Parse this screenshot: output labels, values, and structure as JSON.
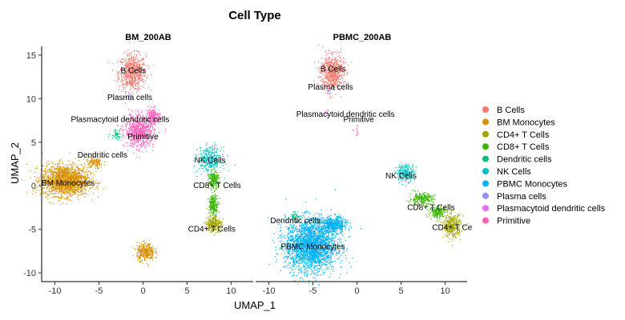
{
  "chart_data": {
    "type": "scatter",
    "title": "Cell Type",
    "xlabel": "UMAP_1",
    "ylabel": "UMAP_2",
    "xlim": [
      -11.5,
      12.5
    ],
    "ylim": [
      -11,
      16
    ],
    "xticks": [
      -10,
      -5,
      0,
      5,
      10
    ],
    "yticks": [
      -10,
      -5,
      0,
      5,
      10,
      15
    ],
    "grid": false,
    "legend_position": "right",
    "categories": [
      {
        "name": "B Cells",
        "color": "#F8766D"
      },
      {
        "name": "BM Monocytes",
        "color": "#D89000"
      },
      {
        "name": "CD4+ T Cells",
        "color": "#A3A500"
      },
      {
        "name": "CD8+ T Cells",
        "color": "#39B600"
      },
      {
        "name": "Dendritic cells",
        "color": "#00BF7D"
      },
      {
        "name": "NK Cells",
        "color": "#00BFC4"
      },
      {
        "name": "PBMC Monocytes",
        "color": "#00B0F6"
      },
      {
        "name": "Plasma cells",
        "color": "#9590FF"
      },
      {
        "name": "Plasmacytoid dendritic cells",
        "color": "#E76BF3"
      },
      {
        "name": "Primitive",
        "color": "#FF62BC"
      }
    ],
    "panels": [
      {
        "name": "BM_200AB",
        "clusters": [
          {
            "category": 0,
            "cx": -1.2,
            "cy": 13.0,
            "rx": 1.4,
            "ry": 1.9,
            "n": 700
          },
          {
            "category": 1,
            "cx": -8.8,
            "cy": 0.6,
            "rx": 2.4,
            "ry": 1.6,
            "n": 1800
          },
          {
            "category": 1,
            "cx": 0.3,
            "cy": -7.6,
            "rx": 0.9,
            "ry": 0.9,
            "n": 350
          },
          {
            "category": 1,
            "cx": -5.5,
            "cy": 2.6,
            "rx": 0.9,
            "ry": 0.6,
            "n": 120
          },
          {
            "category": 4,
            "cx": -3.0,
            "cy": 6.0,
            "rx": 0.6,
            "ry": 0.6,
            "n": 45
          },
          {
            "category": 5,
            "cx": 7.6,
            "cy": 3.0,
            "rx": 1.2,
            "ry": 1.3,
            "n": 350
          },
          {
            "category": 3,
            "cx": 8.0,
            "cy": 0.6,
            "rx": 0.5,
            "ry": 0.9,
            "n": 220
          },
          {
            "category": 3,
            "cx": 8.0,
            "cy": -2.2,
            "rx": 0.5,
            "ry": 1.0,
            "n": 220
          },
          {
            "category": 2,
            "cx": 8.0,
            "cy": -4.4,
            "rx": 0.8,
            "ry": 0.8,
            "n": 300
          },
          {
            "category": 7,
            "cx": -1.7,
            "cy": 10.2,
            "rx": 0.35,
            "ry": 0.35,
            "n": 15
          },
          {
            "category": 8,
            "cx": -1.4,
            "cy": 8.0,
            "rx": 0.3,
            "ry": 0.3,
            "n": 15
          },
          {
            "category": 9,
            "cx": -0.4,
            "cy": 6.2,
            "rx": 1.5,
            "ry": 1.6,
            "n": 800
          },
          {
            "category": 9,
            "cx": 1.2,
            "cy": 8.0,
            "rx": 0.7,
            "ry": 0.8,
            "n": 200
          }
        ],
        "labels": [
          {
            "text": "B Cells",
            "x": -1.1,
            "y": 13.2
          },
          {
            "text": "Plasma cells",
            "x": -1.5,
            "y": 10.1
          },
          {
            "text": "Plasmacytoid dendritic cells",
            "x": -2.6,
            "y": 7.6
          },
          {
            "text": "Primitive",
            "x": 0.0,
            "y": 5.6
          },
          {
            "text": "Dendritic cells",
            "x": -4.6,
            "y": 3.5
          },
          {
            "text": "BM Monocytes",
            "x": -8.5,
            "y": 0.3
          },
          {
            "text": "NK Cells",
            "x": 7.6,
            "y": 2.9
          },
          {
            "text": "CD8+ T Cells",
            "x": 8.4,
            "y": 0.0
          },
          {
            "text": "CD4+ T Cells",
            "x": 7.8,
            "y": -5.0
          }
        ]
      },
      {
        "name": "PBMC_200AB",
        "clusters": [
          {
            "category": 0,
            "cx": -2.8,
            "cy": 13.0,
            "rx": 1.2,
            "ry": 1.8,
            "n": 650
          },
          {
            "category": 6,
            "cx": -5.2,
            "cy": -6.8,
            "rx": 2.6,
            "ry": 2.7,
            "n": 2600
          },
          {
            "category": 6,
            "cx": -2.6,
            "cy": -4.5,
            "rx": 1.3,
            "ry": 0.8,
            "n": 500
          },
          {
            "category": 4,
            "cx": -7.0,
            "cy": -3.5,
            "rx": 0.5,
            "ry": 0.5,
            "n": 40
          },
          {
            "category": 5,
            "cx": 5.5,
            "cy": 1.5,
            "rx": 0.9,
            "ry": 0.9,
            "n": 250
          },
          {
            "category": 3,
            "cx": 7.3,
            "cy": -1.5,
            "rx": 1.2,
            "ry": 0.6,
            "n": 250
          },
          {
            "category": 3,
            "cx": 9.2,
            "cy": -3.0,
            "rx": 0.9,
            "ry": 0.6,
            "n": 200
          },
          {
            "category": 2,
            "cx": 10.8,
            "cy": -4.6,
            "rx": 0.9,
            "ry": 1.2,
            "n": 380
          },
          {
            "category": 7,
            "cx": -3.2,
            "cy": 10.8,
            "rx": 0.3,
            "ry": 0.3,
            "n": 10
          },
          {
            "category": 8,
            "cx": -3.4,
            "cy": 8.4,
            "rx": 0.3,
            "ry": 0.3,
            "n": 10
          },
          {
            "category": 9,
            "cx": 0.0,
            "cy": 6.2,
            "rx": 0.3,
            "ry": 0.5,
            "n": 12
          }
        ],
        "labels": [
          {
            "text": "B Cells",
            "x": -2.7,
            "y": 13.4
          },
          {
            "text": "Plasma cells",
            "x": -3.0,
            "y": 11.3
          },
          {
            "text": "Plasmacytoid dendritic cells",
            "x": -1.3,
            "y": 8.2
          },
          {
            "text": "Primitive",
            "x": 0.2,
            "y": 7.6
          },
          {
            "text": "NK Cells",
            "x": 5.0,
            "y": 1.1
          },
          {
            "text": "CD8+ T Cells",
            "x": 8.4,
            "y": -2.5
          },
          {
            "text": "CD4+ T Ce",
            "x": 10.8,
            "y": -4.8
          },
          {
            "text": "Dendritic cells",
            "x": -7.0,
            "y": -4.0
          },
          {
            "text": "PBMC Monocytes",
            "x": -5.0,
            "y": -7.0
          }
        ]
      }
    ]
  }
}
